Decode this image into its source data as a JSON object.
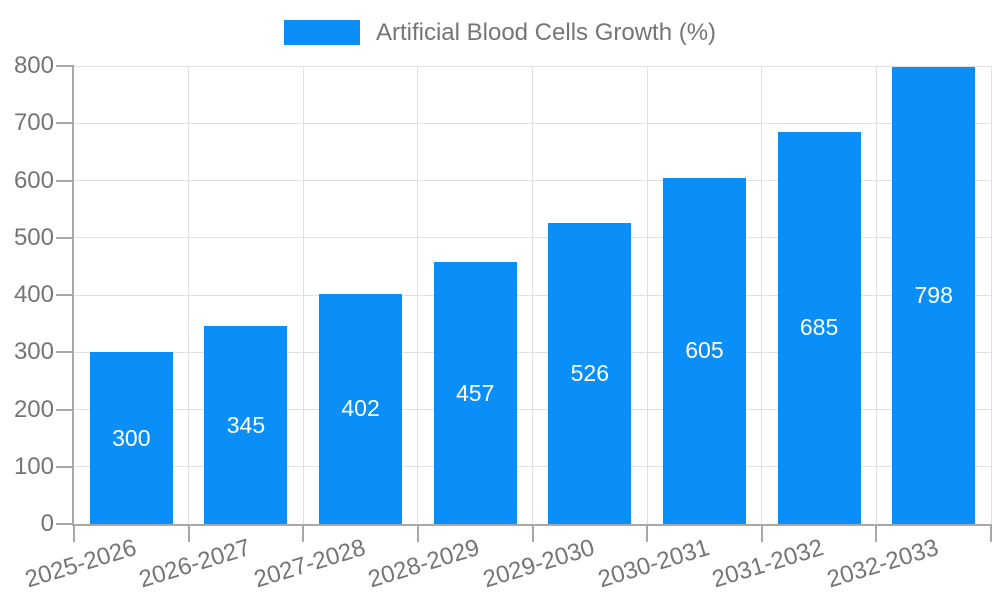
{
  "legend": {
    "label": "Artificial Blood Cells Growth (%)"
  },
  "chart_data": {
    "type": "bar",
    "title": "Artificial Blood Cells Growth (%)",
    "categories": [
      "2025-2026",
      "2026-2027",
      "2027-2028",
      "2028-2029",
      "2029-2030",
      "2030-2031",
      "2031-2032",
      "2032-2033"
    ],
    "values": [
      300,
      345,
      402,
      457,
      526,
      605,
      685,
      798
    ],
    "xlabel": "",
    "ylabel": "",
    "ylim": [
      0,
      800
    ],
    "ytick_step": 100,
    "yticks": [
      0,
      100,
      200,
      300,
      400,
      500,
      600,
      700,
      800
    ],
    "grid": true,
    "legend_position": "top-center",
    "value_label_position": "inside-center",
    "x_tick_label_rotation_deg": -17,
    "colors": {
      "bar": "#0a8ff8",
      "grid": "#e0e0e0",
      "axis": "#a8a8a8",
      "tick_text": "#757575",
      "value_label": "#ffffff",
      "legend_text": "#757575"
    }
  }
}
